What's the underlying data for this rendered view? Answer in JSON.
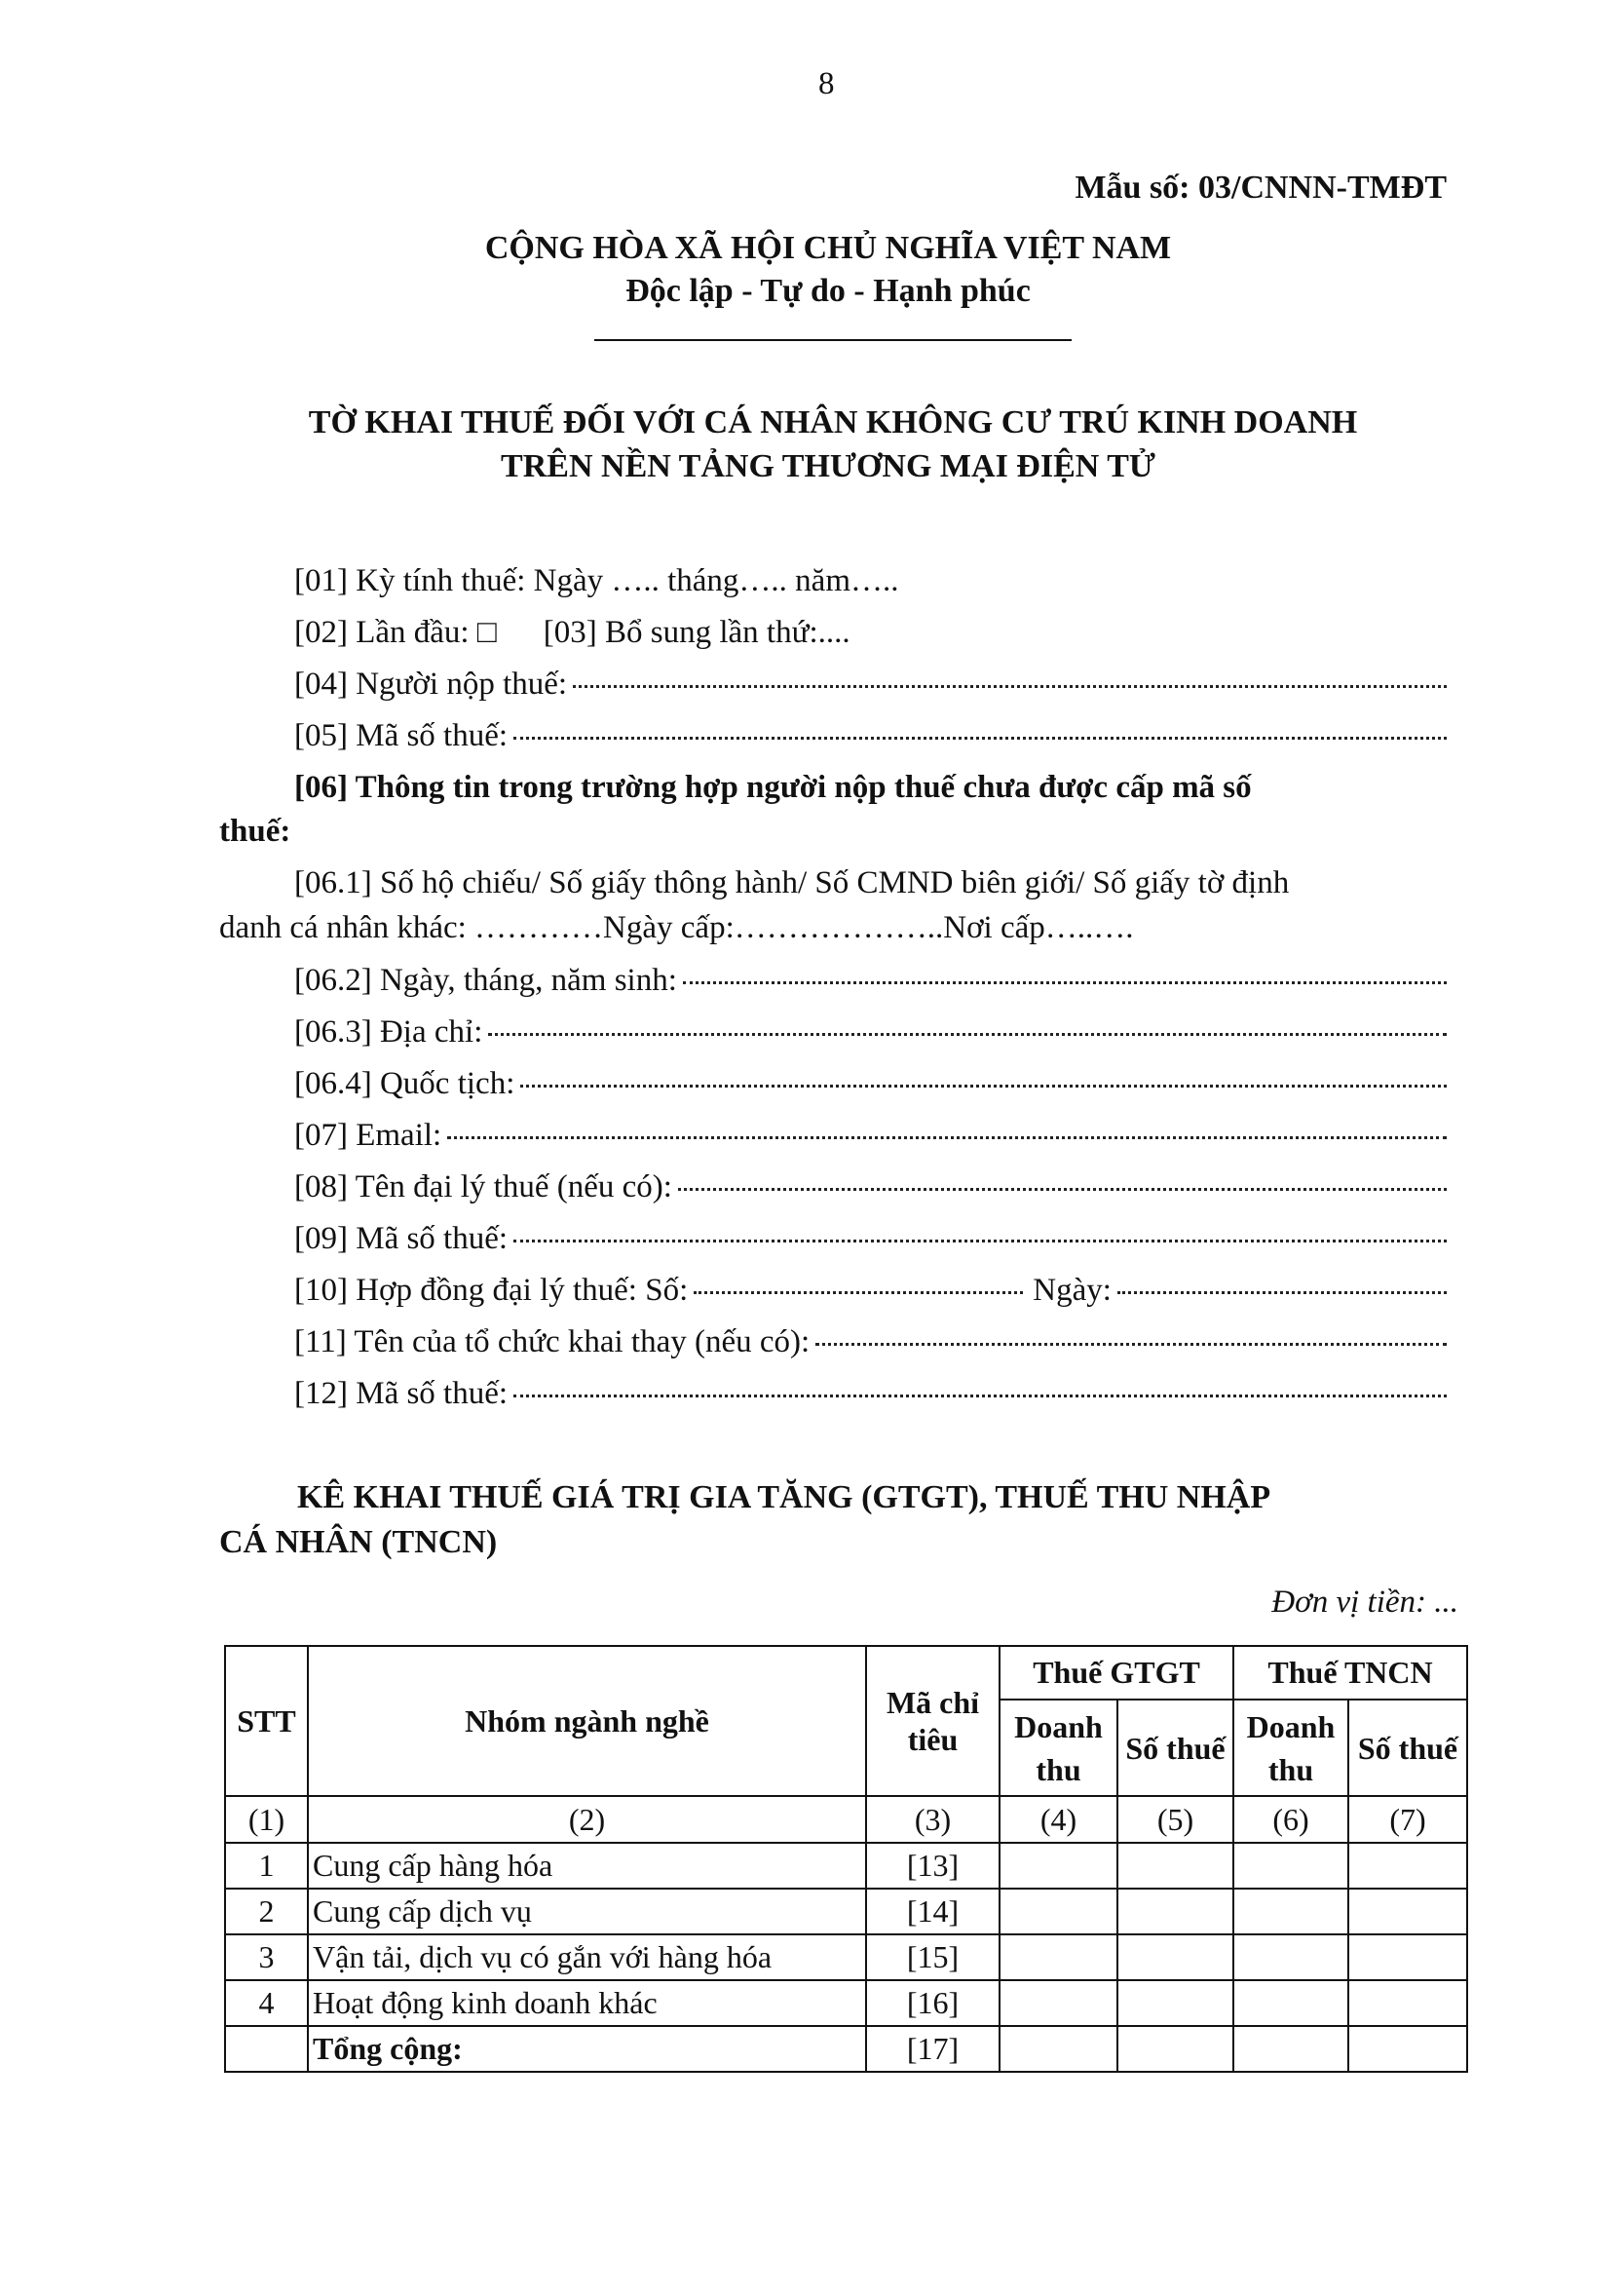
{
  "page_number": "8",
  "form_code": "Mẫu số: 03/CNNN-TMĐT",
  "national_title": "CỘNG HÒA XÃ HỘI CHỦ NGHĨA VIỆT NAM",
  "motto": "Độc lập - Tự do - Hạnh phúc",
  "doc_title": [
    "TỜ KHAI THUẾ ĐỐI VỚI CÁ NHÂN KHÔNG CƯ TRÚ KINH DOANH",
    "TRÊN NỀN TẢNG THƯƠNG MẠI ĐIỆN TỬ"
  ],
  "fields": {
    "f01": "[01] Kỳ tính thuế: Ngày ….. tháng….. năm…..",
    "f02": "[02] Lần đầu: □",
    "f03": "[03] Bổ sung lần thứ:....",
    "f04": "[04] Người nộp thuế:",
    "f05": "[05] Mã số thuế:",
    "f06_a": "[06] Thông tin trong trường hợp người nộp thuế chưa được cấp mã số",
    "f06_b": "thuế:",
    "f061_a": "[06.1] Số hộ chiếu/ Số giấy thông hành/ Số CMND biên giới/ Số giấy tờ định",
    "f061_b": "danh cá nhân khác: …………Ngày cấp:………………..Nơi cấp…..….",
    "f062": "[06.2] Ngày, tháng, năm sinh:",
    "f063": "[06.3] Địa chỉ:",
    "f064": "[06.4] Quốc tịch:",
    "f07": "[07] Email:",
    "f08": "[08] Tên đại lý thuế (nếu có):",
    "f09": "[09] Mã số thuế:",
    "f10_a": "[10] Hợp đồng đại lý thuế: Số:",
    "f10_b": "Ngày:",
    "f11": "[11] Tên của tổ chức khai thay (nếu có):",
    "f12": "[12] Mã số thuế:"
  },
  "section_title": [
    "KÊ KHAI THUẾ GIÁ TRỊ GIA TĂNG (GTGT), THUẾ THU NHẬP",
    "CÁ NHÂN (TNCN)"
  ],
  "currency_unit": "Đơn vị tiền: ...",
  "table": {
    "headers": {
      "stt": "STT",
      "group": "Nhóm ngành nghề",
      "code": "Mã chỉ tiêu",
      "vat": "Thuế GTGT",
      "pit": "Thuế TNCN",
      "revenue": "Doanh thu",
      "tax": "Số thuế"
    },
    "col_numbers": [
      "(1)",
      "(2)",
      "(3)",
      "(4)",
      "(5)",
      "(6)",
      "(7)"
    ],
    "rows": [
      {
        "stt": "1",
        "group": "Cung cấp hàng hóa",
        "code": "[13]"
      },
      {
        "stt": "2",
        "group": "Cung cấp dịch vụ",
        "code": "[14]"
      },
      {
        "stt": "3",
        "group": "Vận tải, dịch vụ có gắn với hàng hóa",
        "code": "[15]"
      },
      {
        "stt": "4",
        "group": "Hoạt động kinh doanh khác",
        "code": "[16]"
      },
      {
        "stt": "",
        "group": "Tổng cộng:",
        "code": "[17]"
      }
    ]
  }
}
